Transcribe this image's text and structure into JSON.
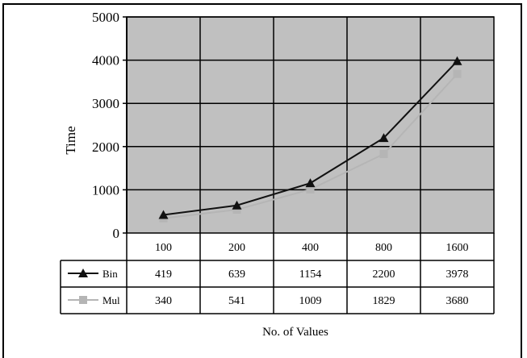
{
  "chart_data": {
    "type": "line",
    "title": "",
    "xlabel": "No. of Values",
    "ylabel": "Time",
    "ylim": [
      0,
      5000
    ],
    "yticks": [
      0,
      1000,
      2000,
      3000,
      4000,
      5000
    ],
    "categories": [
      "100",
      "200",
      "400",
      "800",
      "1600"
    ],
    "grid": true,
    "legend": "data-table-left",
    "series": [
      {
        "name": "Bin",
        "values": [
          419,
          639,
          1154,
          2200,
          3978
        ],
        "color": "#111111",
        "marker": "triangle"
      },
      {
        "name": "Mul",
        "values": [
          340,
          541,
          1009,
          1829,
          3680
        ],
        "color": "#b5b5b5",
        "marker": "square"
      }
    ],
    "plot_background": "#c0c0c0"
  }
}
